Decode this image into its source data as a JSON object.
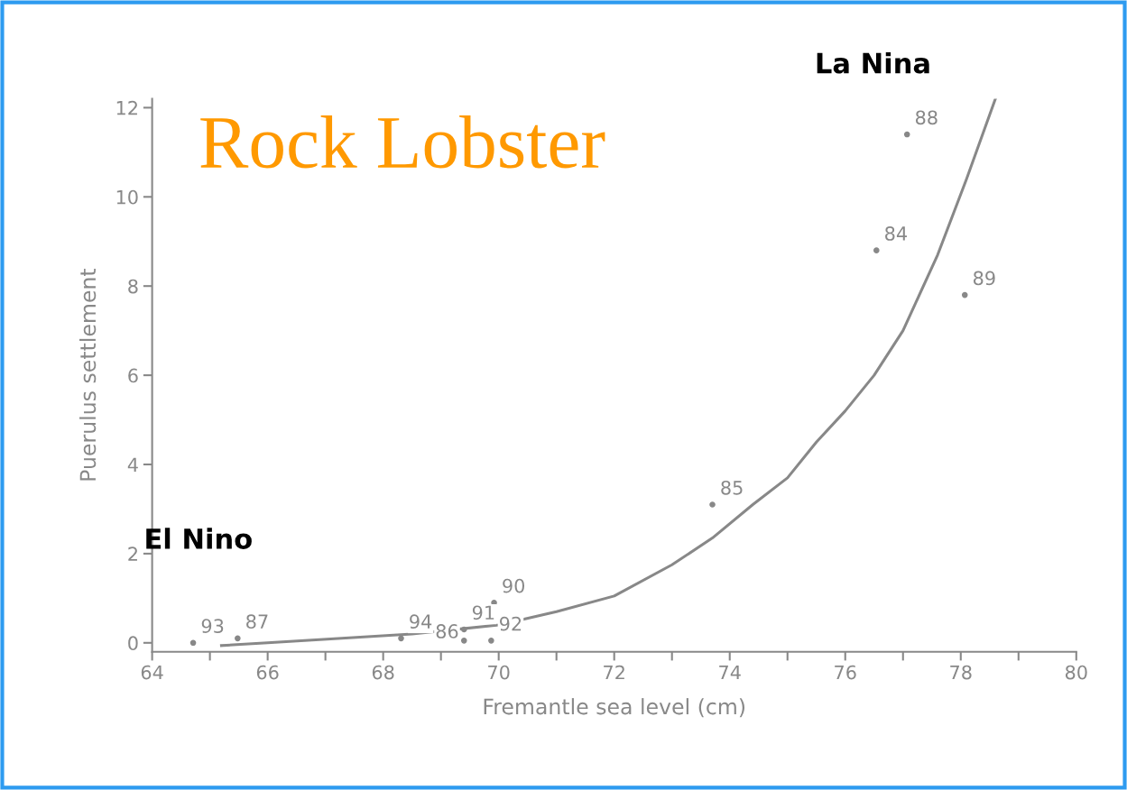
{
  "chart_data": {
    "type": "scatter",
    "title": "Rock Lobster",
    "xlabel": "Fremantle sea level (cm)",
    "ylabel": "Puerulus settlement",
    "xlim": [
      64,
      80
    ],
    "ylim": [
      -0.2,
      12.2
    ],
    "xticks": [
      64,
      {
        "value": 65,
        "label": null
      },
      66,
      {
        "value": 67,
        "label": null
      },
      68,
      {
        "value": 69,
        "label": null
      },
      70,
      {
        "value": 71,
        "label": null
      },
      72,
      {
        "value": 73,
        "label": null
      },
      74,
      {
        "value": 75,
        "label": null
      },
      76,
      {
        "value": 77,
        "label": null
      },
      78,
      {
        "value": 79,
        "label": null
      },
      80
    ],
    "yticks": [
      0,
      2,
      4,
      6,
      8,
      10,
      12
    ],
    "grid": false,
    "legend": false,
    "series": [
      {
        "color": "#888888",
        "marker": "circle",
        "x": [
          64.71,
          65.48,
          68.31,
          69.4,
          69.4,
          69.87,
          69.92,
          73.7,
          76.54,
          77.07,
          78.07
        ],
        "values": [
          0.0,
          0.1,
          0.1,
          0.05,
          0.3,
          0.05,
          0.9,
          3.1,
          8.8,
          11.4,
          7.8
        ]
      },
      {
        "type": "line",
        "color": "#888888",
        "marker": "none",
        "line_style": "solid",
        "x": [
          65.2,
          66,
          68.5,
          70,
          71,
          72,
          73,
          73.7,
          74.4,
          75.0,
          75.5,
          76.0,
          76.5,
          77.0,
          77.6,
          78.1,
          78.6
        ],
        "values": [
          -0.06,
          0.0,
          0.2,
          0.4,
          0.7,
          1.05,
          1.75,
          2.35,
          3.1,
          3.7,
          4.5,
          5.2,
          6.0,
          7.0,
          8.7,
          10.4,
          12.2
        ]
      }
    ],
    "annotations": [
      {
        "text": "93",
        "x": 64.71,
        "y": 0.0
      },
      {
        "text": "87",
        "x": 65.48,
        "y": 0.1
      },
      {
        "text": "94",
        "x": 68.31,
        "y": 0.1
      },
      {
        "text": "86",
        "x": 69.4,
        "y": 0.05
      },
      {
        "text": "91",
        "x": 69.4,
        "y": 0.3
      },
      {
        "text": "92",
        "x": 69.87,
        "y": 0.05
      },
      {
        "text": "90",
        "x": 69.92,
        "y": 0.9
      },
      {
        "text": "85",
        "x": 73.7,
        "y": 3.1
      },
      {
        "text": "84",
        "x": 76.54,
        "y": 8.8
      },
      {
        "text": "88",
        "x": 77.07,
        "y": 11.4
      },
      {
        "text": "89",
        "x": 78.07,
        "y": 7.8
      },
      "La Nina",
      "El Nino"
    ]
  }
}
